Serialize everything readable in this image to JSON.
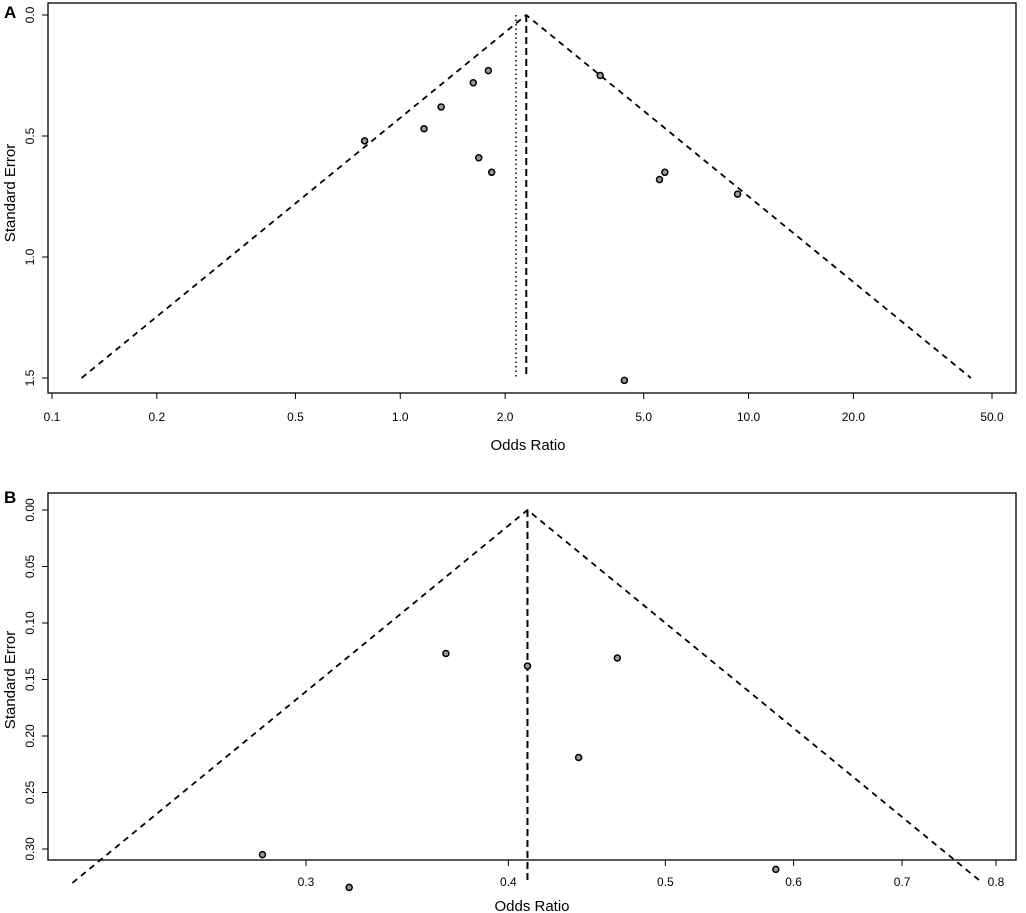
{
  "chart_data": [
    {
      "panel_label": "A",
      "type": "scatter",
      "subtype": "funnel-plot",
      "xlabel": "Odds Ratio",
      "ylabel": "Standard Error",
      "x_scale": "log",
      "y_reversed": true,
      "xlim": [
        0.1,
        60
      ],
      "ylim": [
        0,
        1.55
      ],
      "x_ticks": [
        {
          "value": 0.1,
          "label": "0.1"
        },
        {
          "value": 0.2,
          "label": "0.2"
        },
        {
          "value": 0.5,
          "label": "0.5"
        },
        {
          "value": 1.0,
          "label": "1.0"
        },
        {
          "value": 2.0,
          "label": "2.0"
        },
        {
          "value": 5.0,
          "label": "5.0"
        },
        {
          "value": 10.0,
          "label": "10.0"
        },
        {
          "value": 20.0,
          "label": "20.0"
        },
        {
          "value": 50.0,
          "label": "50.0"
        }
      ],
      "y_ticks": [
        {
          "value": 0.0,
          "label": "0.0"
        },
        {
          "value": 0.5,
          "label": "0.5"
        },
        {
          "value": 1.0,
          "label": "1.0"
        },
        {
          "value": 1.5,
          "label": "1.5"
        }
      ],
      "pooled_estimate": 2.3,
      "adjusted_estimate": 2.15,
      "funnel_max_se": 1.5,
      "points": [
        {
          "x": 0.79,
          "y": 0.52
        },
        {
          "x": 1.17,
          "y": 0.47
        },
        {
          "x": 1.31,
          "y": 0.38
        },
        {
          "x": 1.62,
          "y": 0.28
        },
        {
          "x": 1.79,
          "y": 0.23
        },
        {
          "x": 1.68,
          "y": 0.59
        },
        {
          "x": 1.83,
          "y": 0.65
        },
        {
          "x": 3.75,
          "y": 0.25
        },
        {
          "x": 5.55,
          "y": 0.68
        },
        {
          "x": 5.75,
          "y": 0.65
        },
        {
          "x": 9.3,
          "y": 0.74
        },
        {
          "x": 4.4,
          "y": 1.51
        }
      ]
    },
    {
      "panel_label": "B",
      "type": "scatter",
      "subtype": "funnel-plot",
      "xlabel": "Odds Ratio",
      "ylabel": "Standard Error",
      "x_scale": "log",
      "y_reversed": true,
      "xlim": [
        0.215,
        0.818
      ],
      "ylim": [
        0,
        0.345
      ],
      "x_ticks": [
        {
          "value": 0.3,
          "label": "0.3"
        },
        {
          "value": 0.4,
          "label": "0.4"
        },
        {
          "value": 0.5,
          "label": "0.5"
        },
        {
          "value": 0.6,
          "label": "0.6"
        },
        {
          "value": 0.7,
          "label": "0.7"
        },
        {
          "value": 0.8,
          "label": "0.8"
        }
      ],
      "y_ticks": [
        {
          "value": 0.0,
          "label": "0.00"
        },
        {
          "value": 0.05,
          "label": "0.05"
        },
        {
          "value": 0.1,
          "label": "0.10"
        },
        {
          "value": 0.15,
          "label": "0.15"
        },
        {
          "value": 0.2,
          "label": "0.20"
        },
        {
          "value": 0.25,
          "label": "0.25"
        },
        {
          "value": 0.3,
          "label": "0.30"
        }
      ],
      "pooled_estimate": 0.411,
      "adjusted_estimate": null,
      "funnel_max_se": 0.33,
      "points": [
        {
          "x": 0.366,
          "y": 0.127
        },
        {
          "x": 0.411,
          "y": 0.138
        },
        {
          "x": 0.467,
          "y": 0.131
        },
        {
          "x": 0.442,
          "y": 0.219
        },
        {
          "x": 0.282,
          "y": 0.305
        },
        {
          "x": 0.319,
          "y": 0.334
        },
        {
          "x": 0.585,
          "y": 0.318
        }
      ]
    }
  ]
}
